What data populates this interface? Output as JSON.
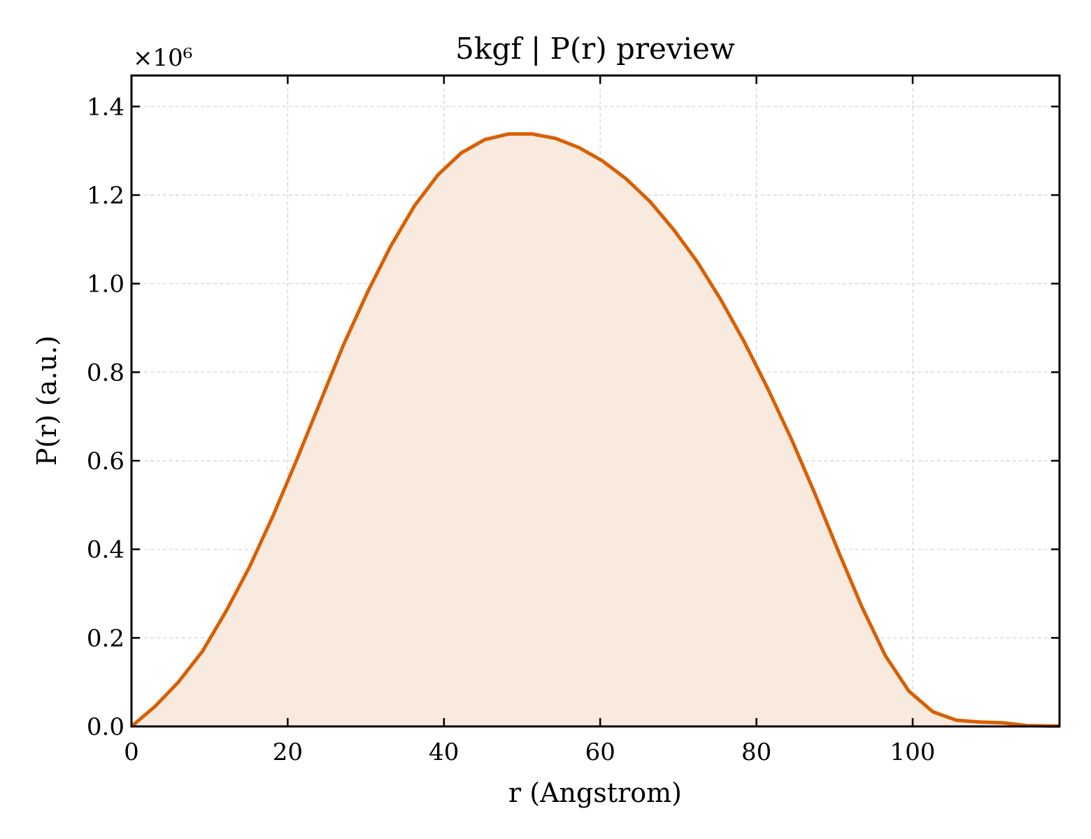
{
  "chart_data": {
    "type": "area",
    "title": "5kgf | P(r) preview",
    "xlabel": "r (Angstrom)",
    "ylabel": "P(r) (a.u.)",
    "y_multiplier_label": "×10⁶",
    "xlim": [
      0,
      118.8
    ],
    "ylim": [
      0,
      1.47
    ],
    "x_ticks": [
      0,
      20,
      40,
      60,
      80,
      100
    ],
    "y_ticks": [
      0.0,
      0.2,
      0.4,
      0.6,
      0.8,
      1.0,
      1.2,
      1.4
    ],
    "x_tick_labels": [
      "0",
      "20",
      "40",
      "60",
      "80",
      "100"
    ],
    "y_tick_labels": [
      "0.0",
      "0.2",
      "0.4",
      "0.6",
      "0.8",
      "1.0",
      "1.2",
      "1.4"
    ],
    "grid": true,
    "series": [
      {
        "color": "#d95f02",
        "fill_color": "#f9eadf",
        "x": [
          0,
          3,
          6,
          9.1,
          12.1,
          15.1,
          18.1,
          21.1,
          24.1,
          27.1,
          30.2,
          33.2,
          36.2,
          39.2,
          42.2,
          45.2,
          48.3,
          51.3,
          54.3,
          57.3,
          60.3,
          63.3,
          66.4,
          69.4,
          72.4,
          75.4,
          78.4,
          81.4,
          84.5,
          87.5,
          90.5,
          93.5,
          96.5,
          99.5,
          102.6,
          105.6,
          108.6,
          111.6,
          114.6,
          117.6,
          118.8
        ],
        "y": [
          0.0,
          0.045,
          0.1,
          0.17,
          0.26,
          0.36,
          0.475,
          0.6,
          0.73,
          0.86,
          0.98,
          1.085,
          1.175,
          1.245,
          1.295,
          1.325,
          1.338,
          1.338,
          1.328,
          1.307,
          1.277,
          1.237,
          1.185,
          1.122,
          1.05,
          0.965,
          0.87,
          0.765,
          0.648,
          0.525,
          0.395,
          0.27,
          0.16,
          0.08,
          0.033,
          0.014,
          0.01,
          0.008,
          0.002,
          0.001,
          0.001
        ]
      }
    ]
  }
}
